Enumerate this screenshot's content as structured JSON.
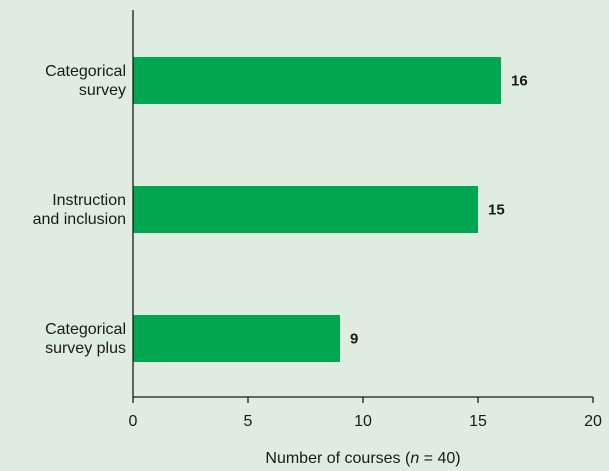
{
  "chart_data": {
    "type": "bar",
    "orientation": "horizontal",
    "categories": [
      [
        "Categorical",
        "survey"
      ],
      [
        "Instruction",
        "and inclusion"
      ],
      [
        "Categorical",
        "survey plus"
      ]
    ],
    "values": [
      16,
      15,
      9
    ],
    "value_labels": [
      "16",
      "15",
      "9"
    ],
    "xlim": [
      0,
      20
    ],
    "xticks": [
      0,
      5,
      10,
      15,
      20
    ],
    "xlabel_prefix": "Number of courses (",
    "xlabel_italic": "n",
    "xlabel_suffix": " = 40)",
    "grid": false,
    "bar_color": "#00a650",
    "background_color": "#deede0"
  }
}
